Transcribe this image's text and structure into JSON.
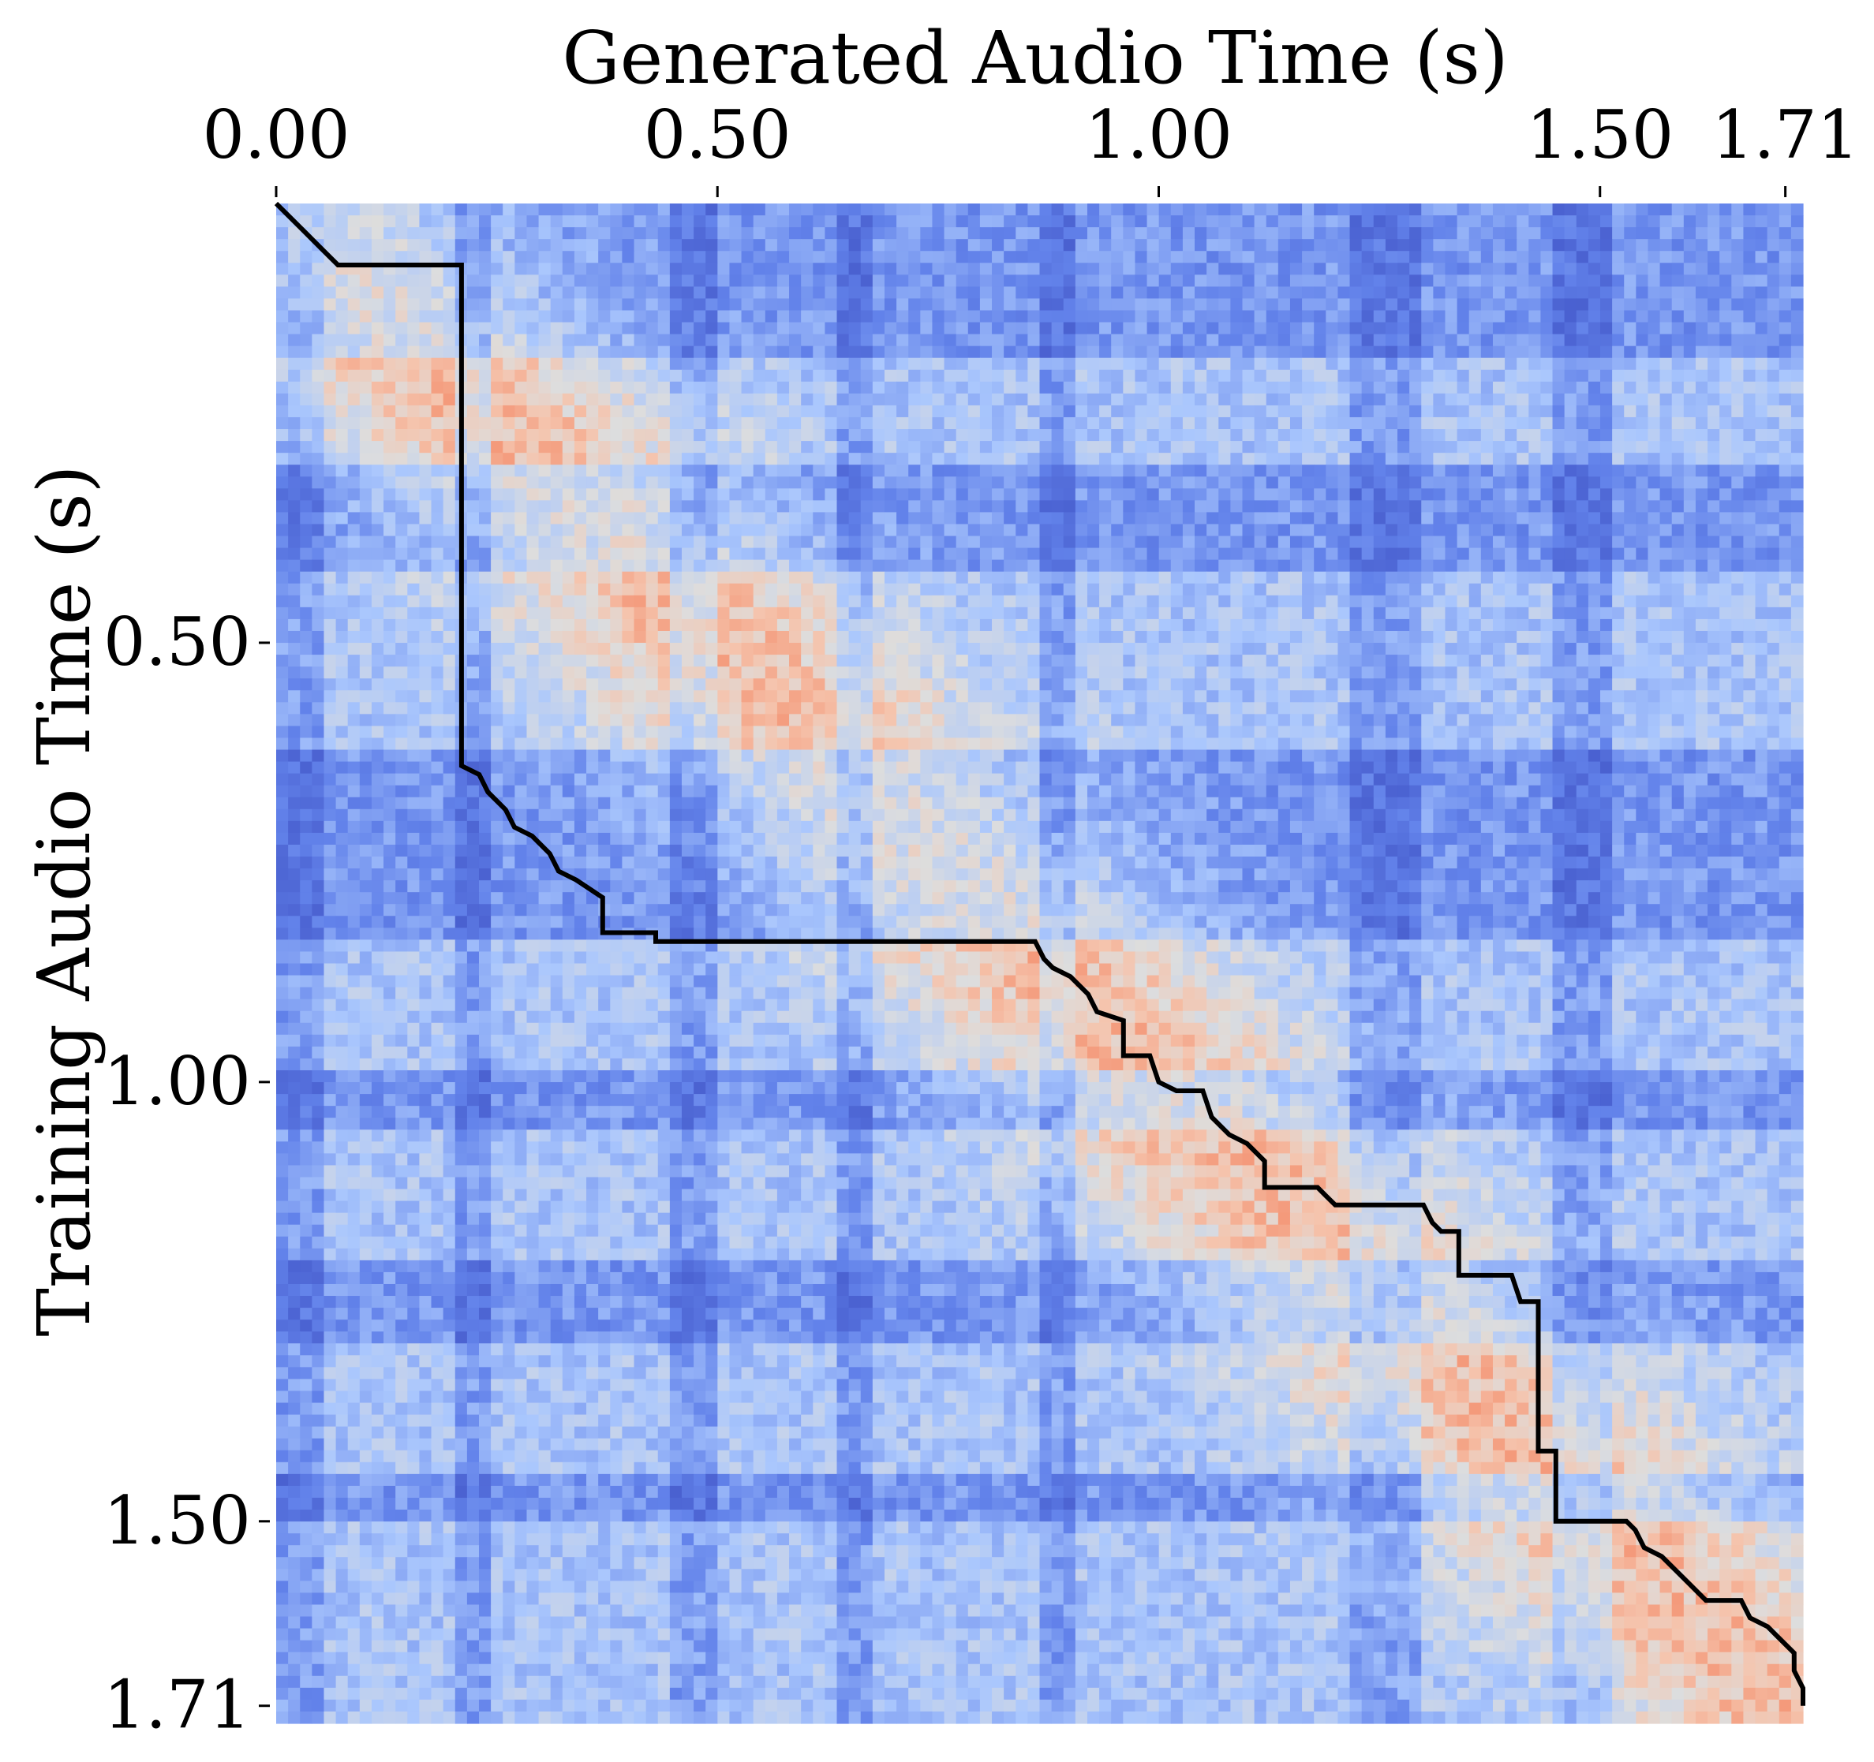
{
  "chart_data": {
    "type": "heatmap",
    "title": "",
    "xlabel": "Generated Audio Time (s)",
    "ylabel": "Training Audio Time (s)",
    "xlim": [
      0,
      1.73
    ],
    "ylim": [
      0,
      1.73
    ],
    "x_axis_position": "top",
    "y_axis_inverted": true,
    "x_ticks": [
      {
        "value": 0.0,
        "label": "0.00"
      },
      {
        "value": 0.5,
        "label": "0.50"
      },
      {
        "value": 1.0,
        "label": "1.00"
      },
      {
        "value": 1.5,
        "label": "1.50"
      },
      {
        "value": 1.71,
        "label": "1.71"
      }
    ],
    "y_ticks": [
      {
        "value": 0.5,
        "label": "0.50"
      },
      {
        "value": 1.0,
        "label": "1.00"
      },
      {
        "value": 1.5,
        "label": "1.50"
      },
      {
        "value": 1.71,
        "label": "1.71"
      }
    ],
    "colormap": "coolwarm",
    "colors": {
      "low": "#3b4cc0",
      "mid": "#dddddd",
      "high": "#f4a582"
    },
    "grid": false,
    "legend": "none",
    "alignment_path": {
      "name": "",
      "points": [
        [
          0.0,
          0.0
        ],
        [
          0.02,
          0.02
        ],
        [
          0.03,
          0.03
        ],
        [
          0.05,
          0.05
        ],
        [
          0.07,
          0.07
        ],
        [
          0.21,
          0.07
        ],
        [
          0.21,
          0.64
        ],
        [
          0.23,
          0.65
        ],
        [
          0.24,
          0.67
        ],
        [
          0.26,
          0.69
        ],
        [
          0.27,
          0.71
        ],
        [
          0.29,
          0.72
        ],
        [
          0.31,
          0.74
        ],
        [
          0.32,
          0.76
        ],
        [
          0.34,
          0.77
        ],
        [
          0.37,
          0.79
        ],
        [
          0.37,
          0.83
        ],
        [
          0.43,
          0.83
        ],
        [
          0.43,
          0.84
        ],
        [
          0.86,
          0.84
        ],
        [
          0.87,
          0.86
        ],
        [
          0.88,
          0.87
        ],
        [
          0.9,
          0.88
        ],
        [
          0.92,
          0.9
        ],
        [
          0.93,
          0.92
        ],
        [
          0.96,
          0.93
        ],
        [
          0.96,
          0.97
        ],
        [
          0.99,
          0.97
        ],
        [
          1.0,
          1.0
        ],
        [
          1.02,
          1.01
        ],
        [
          1.05,
          1.01
        ],
        [
          1.06,
          1.04
        ],
        [
          1.08,
          1.06
        ],
        [
          1.1,
          1.07
        ],
        [
          1.12,
          1.09
        ],
        [
          1.12,
          1.12
        ],
        [
          1.18,
          1.12
        ],
        [
          1.19,
          1.13
        ],
        [
          1.2,
          1.14
        ],
        [
          1.3,
          1.14
        ],
        [
          1.31,
          1.16
        ],
        [
          1.32,
          1.17
        ],
        [
          1.34,
          1.17
        ],
        [
          1.34,
          1.22
        ],
        [
          1.4,
          1.22
        ],
        [
          1.41,
          1.25
        ],
        [
          1.43,
          1.25
        ],
        [
          1.43,
          1.42
        ],
        [
          1.45,
          1.42
        ],
        [
          1.45,
          1.5
        ],
        [
          1.53,
          1.5
        ],
        [
          1.54,
          1.51
        ],
        [
          1.55,
          1.53
        ],
        [
          1.57,
          1.54
        ],
        [
          1.59,
          1.56
        ],
        [
          1.6,
          1.57
        ],
        [
          1.62,
          1.59
        ],
        [
          1.66,
          1.59
        ],
        [
          1.67,
          1.61
        ],
        [
          1.69,
          1.62
        ],
        [
          1.7,
          1.63
        ],
        [
          1.72,
          1.65
        ],
        [
          1.72,
          1.67
        ],
        [
          1.74,
          1.69
        ],
        [
          1.74,
          1.71
        ]
      ]
    }
  }
}
